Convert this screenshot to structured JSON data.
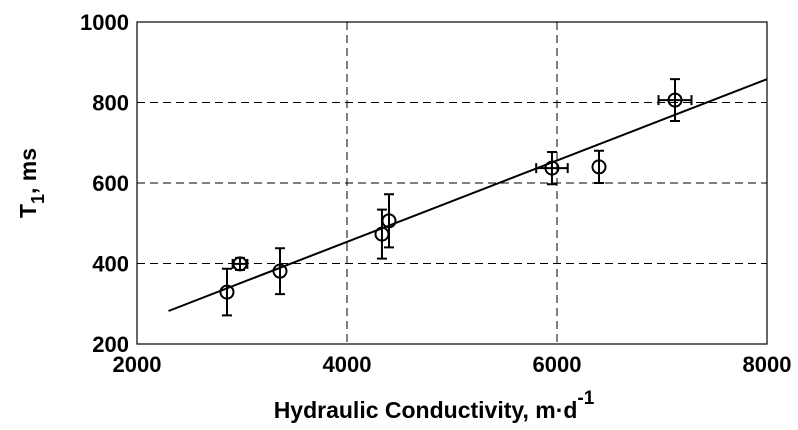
{
  "chart_data": {
    "type": "scatter",
    "x_label": [
      "Hydraulic Conductivity, m·d",
      "-1"
    ],
    "y_label": [
      "T",
      "1",
      ", ms"
    ],
    "xlim": [
      2000,
      8000
    ],
    "xticks": [
      2000,
      4000,
      6000,
      8000
    ],
    "ylim": [
      200,
      1000
    ],
    "yticks": [
      200,
      400,
      600,
      800,
      1000
    ],
    "grid": true,
    "color": "#000000",
    "x": [
      2857,
      2981,
      3362,
      4333,
      4400,
      5952,
      6400,
      7124
    ],
    "values": [
      329,
      399,
      381,
      473,
      506,
      637,
      640,
      806
    ],
    "yerr": [
      58,
      15,
      57,
      61,
      66,
      40,
      40,
      52
    ],
    "xerr": [
      null,
      70,
      null,
      null,
      null,
      150,
      null,
      157
    ],
    "fit": {
      "x": [
        2300,
        8000
      ],
      "values": [
        282,
        858
      ]
    }
  }
}
